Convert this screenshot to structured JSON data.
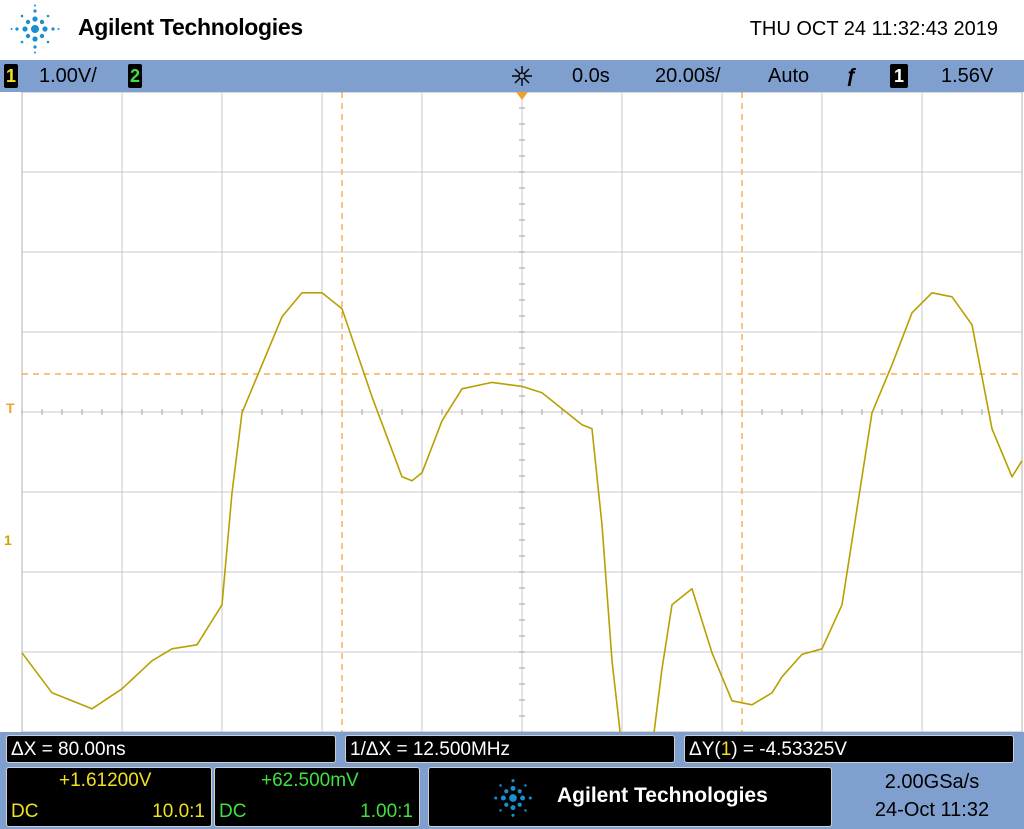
{
  "header": {
    "brand": "Agilent Technologies",
    "datetime": "THU OCT 24 11:32:43 2019"
  },
  "status_bar": {
    "ch1_number": "1",
    "ch1_scale": "1.00V/",
    "ch2_number": "2",
    "delay": "0.0s",
    "timebase": "20.00š/",
    "trigger_mode": "Auto",
    "trigger_slope_symbol": "ƒ",
    "trigger_source": "1",
    "trigger_level": "1.56V"
  },
  "screen_markers": {
    "trigger_marker": "T",
    "ch1_ground_marker": "1"
  },
  "measurements": {
    "delta_x": "ΔX = 80.00ns",
    "inverse_delta_x": "1/ΔX = 12.500MHz",
    "delta_y_prefix": "ΔY(",
    "delta_y_channel": "1",
    "delta_y_suffix": ") = -4.53325V"
  },
  "channel1_panel": {
    "offset": "+1.61200V",
    "coupling": "DC",
    "probe": "10.0:1"
  },
  "channel2_panel": {
    "offset": "+62.500mV",
    "coupling": "DC",
    "probe": "1.00:1"
  },
  "footer": {
    "brand": "Agilent Technologies",
    "sample_rate": "2.00GSa/s",
    "date_time": "24-Oct 11:32"
  },
  "colors": {
    "ch1": "#f0e020",
    "ch2": "#40e040",
    "trace": "#b8a000",
    "cursor": "#f0a030",
    "status_bar_bg": "#7f9fcf",
    "accent_blue": "#1a8fd0"
  },
  "chart_data": {
    "type": "line",
    "x_unit": "ns",
    "y_unit": "V",
    "x_divisions": 10,
    "y_divisions": 8,
    "cursor_x_ns": [
      -36,
      44
    ],
    "cursor_delta_x_ns": 80,
    "series": [
      {
        "name": "1",
        "x": [
          -100,
          -94,
          -86,
          -80,
          -74,
          -70,
          -65,
          -60,
          -58,
          -56,
          -52,
          -48,
          -44,
          -40,
          -36,
          -30,
          -24,
          -22,
          -20,
          -16,
          -12,
          -6,
          0,
          4,
          8,
          12,
          14,
          16,
          18,
          20,
          22,
          24,
          26,
          28,
          30,
          34,
          38,
          42,
          46,
          50,
          52,
          56,
          60,
          64,
          68,
          70,
          74,
          78,
          82,
          86,
          90,
          94,
          98,
          100
        ],
        "values": [
          -1.4,
          -1.9,
          -2.1,
          -1.85,
          -1.5,
          -1.35,
          -1.3,
          -0.8,
          0.6,
          1.6,
          2.2,
          2.8,
          3.1,
          3.1,
          2.9,
          1.8,
          0.8,
          0.75,
          0.85,
          1.5,
          1.9,
          1.98,
          1.93,
          1.85,
          1.65,
          1.45,
          1.4,
          0.2,
          -1.5,
          -2.6,
          -3.2,
          -3.1,
          -2.6,
          -1.6,
          -0.8,
          -0.6,
          -1.4,
          -2.0,
          -2.05,
          -1.9,
          -1.7,
          -1.42,
          -1.35,
          -0.8,
          0.8,
          1.6,
          2.2,
          2.85,
          3.1,
          3.05,
          2.7,
          1.4,
          0.8,
          1.0
        ]
      }
    ]
  }
}
